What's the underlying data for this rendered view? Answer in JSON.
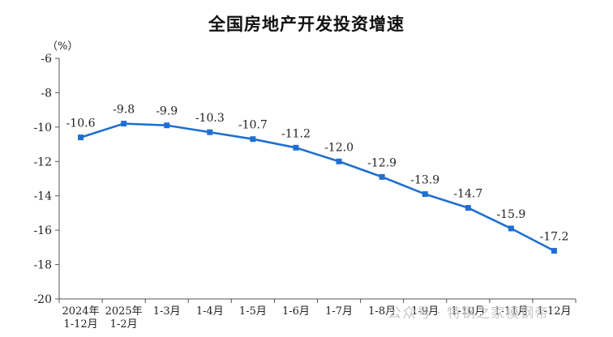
{
  "chart_data": {
    "type": "line",
    "title": "全国房地产开发投资增速",
    "unit": "（%）",
    "ylim": [
      -20,
      -6
    ],
    "yticks": [
      "-6",
      "-8",
      "-10",
      "-12",
      "-14",
      "-16",
      "-18",
      "-20"
    ],
    "categories": [
      [
        "2024年",
        "1-12月"
      ],
      [
        "2025年",
        "1-2月"
      ],
      [
        "1-3月"
      ],
      [
        "1-4月"
      ],
      [
        "1-5月"
      ],
      [
        "1-6月"
      ],
      [
        "1-7月"
      ],
      [
        "1-8月"
      ],
      [
        "1-9月"
      ],
      [
        "1-10月"
      ],
      [
        "1-11月"
      ],
      [
        "1-12月"
      ]
    ],
    "series": [
      {
        "values": [
          -10.6,
          -9.8,
          -9.9,
          -10.3,
          -10.7,
          -11.2,
          -12.0,
          -12.9,
          -13.9,
          -14.7,
          -15.9,
          -17.2
        ],
        "labels": [
          "-10.6",
          "-9.8",
          "-9.9",
          "-10.3",
          "-10.7",
          "-11.2",
          "-12.0",
          "-12.9",
          "-13.9",
          "-14.7",
          "-15.9",
          "-17.2"
        ],
        "color": "#1f6fd1"
      }
    ],
    "grid": false,
    "legend": "none"
  },
  "watermark": "公众号 · 特钢之家模钢帝"
}
